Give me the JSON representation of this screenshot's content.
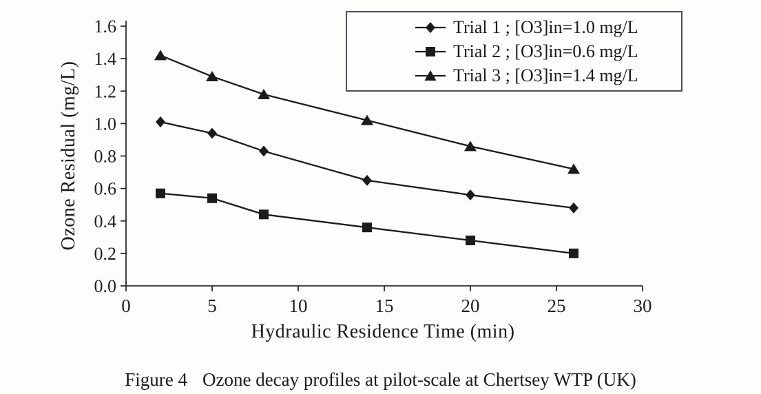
{
  "chart_data": {
    "type": "line",
    "x": [
      2,
      5,
      8,
      14,
      20,
      26
    ],
    "series": [
      {
        "name": "Trial 1 ; [O3]in=1.0 mg/L",
        "marker": "diamond",
        "values": [
          1.01,
          0.94,
          0.83,
          0.65,
          0.56,
          0.48
        ]
      },
      {
        "name": "Trial 2 ; [O3]in=0.6 mg/L",
        "marker": "square",
        "values": [
          0.57,
          0.54,
          0.44,
          0.36,
          0.28,
          0.2
        ]
      },
      {
        "name": "Trial 3 ; [O3]in=1.4 mg/L",
        "marker": "triangle",
        "values": [
          1.42,
          1.29,
          1.18,
          1.02,
          0.86,
          0.72
        ]
      }
    ],
    "xlabel": "Hydraulic Residence Time (min)",
    "ylabel": "Ozone Residual (mg/L)",
    "xlim": [
      0,
      30
    ],
    "xtick_step": 5,
    "ylim": [
      0,
      1.6
    ],
    "ytick_step": 0.2,
    "grid": false,
    "legend_position": "top-right",
    "line_color": "#1b1b1b",
    "axis_color": "#2a2a2a"
  },
  "caption": {
    "label": "Figure 4",
    "text": "Ozone decay profiles at pilot-scale at Chertsey WTP (UK)"
  }
}
